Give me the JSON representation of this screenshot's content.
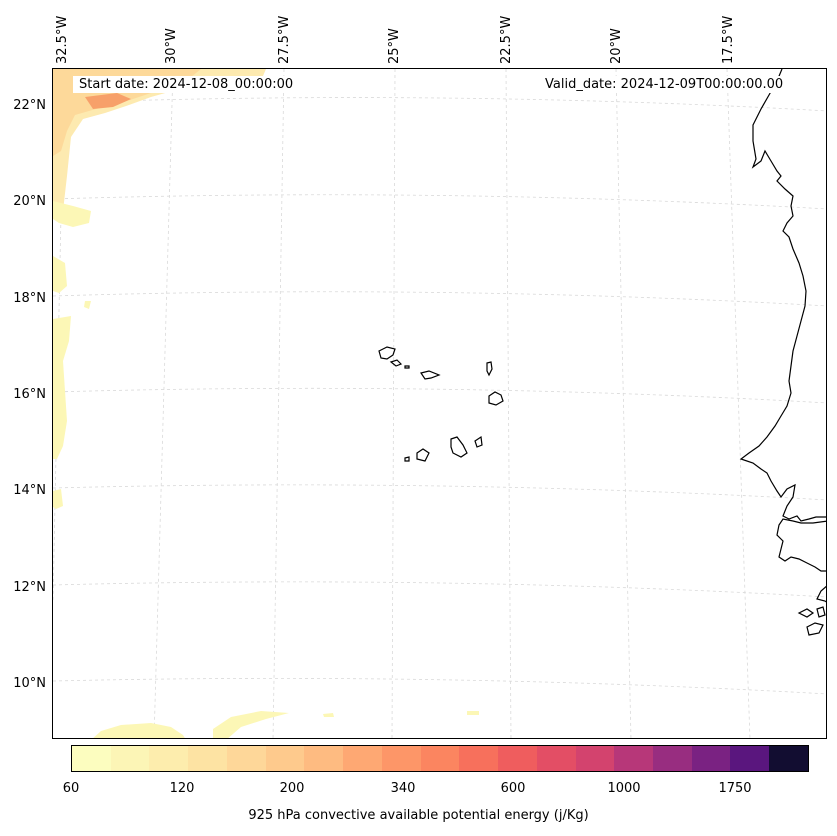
{
  "info": {
    "start_date": "Start date: 2024-12-08_00:00:00",
    "valid_date": "Valid_date: 2024-12-09T00:00:00.00"
  },
  "lon_labels": [
    "32.5°W",
    "30°W",
    "27.5°W",
    "25°W",
    "22.5°W",
    "20°W",
    "17.5°W"
  ],
  "lat_labels": [
    "22°N",
    "20°N",
    "18°N",
    "16°N",
    "14°N",
    "12°N",
    "10°N"
  ],
  "colorbar": {
    "label": "925 hPa convective available potential energy (j/Kg)",
    "ticks": [
      "60",
      "120",
      "200",
      "340",
      "600",
      "1000",
      "1750"
    ],
    "colors": [
      "#fcfdbf",
      "#fcf5b6",
      "#fdedad",
      "#fde3a3",
      "#fed799",
      "#feca8d",
      "#febb81",
      "#fea873",
      "#fd9668",
      "#fb8560",
      "#f7705c",
      "#ef5d5e",
      "#e34e65",
      "#d3436e",
      "#b73779",
      "#982d80",
      "#7a2282",
      "#5a167e",
      "#120d31"
    ]
  },
  "features": {
    "coastline_color": "#000000",
    "gridline_color": "#d9d9d9",
    "fill_low_color": "#fcf7b6",
    "fill_mid_color": "#fdd99a",
    "fill_high_color": "#f7a06a"
  }
}
